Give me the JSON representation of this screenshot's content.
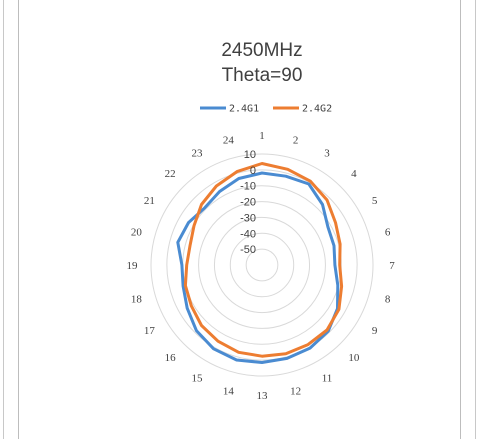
{
  "chart_data": {
    "type": "radar",
    "title": "2450MHz",
    "subtitle": "Theta=90",
    "categories": [
      "1",
      "2",
      "3",
      "4",
      "5",
      "6",
      "7",
      "8",
      "9",
      "10",
      "11",
      "12",
      "13",
      "14",
      "15",
      "16",
      "17",
      "18",
      "19",
      "20",
      "21",
      "22",
      "23",
      "24"
    ],
    "radial_ticks": [
      10,
      0,
      -10,
      -20,
      -30,
      -40,
      -50
    ],
    "rlim": [
      -60,
      10
    ],
    "legend_position": "top",
    "grid": true,
    "series": [
      {
        "name": "2.4G1",
        "color": "#4a8bd1",
        "values": [
          -2.0,
          -2.0,
          -1.0,
          -6.0,
          -12.0,
          -13.0,
          -14.0,
          -10.5,
          -5.0,
          -1.0,
          0.5,
          1.0,
          1.5,
          2.0,
          1.0,
          -1.5,
          -5.5,
          -8.5,
          -9.5,
          -5.0,
          -6.5,
          -9.0,
          -6.5,
          -3.5
        ]
      },
      {
        "name": "2.4G2",
        "color": "#ed7d31",
        "values": [
          4.0,
          2.5,
          1.0,
          -2.0,
          -6.5,
          -9.0,
          -11.0,
          -8.0,
          -4.0,
          -2.0,
          -2.0,
          -2.0,
          -2.5,
          -3.0,
          -4.5,
          -6.0,
          -8.5,
          -10.0,
          -12.5,
          -13.0,
          -10.5,
          -6.0,
          -2.5,
          1.0
        ]
      }
    ]
  }
}
